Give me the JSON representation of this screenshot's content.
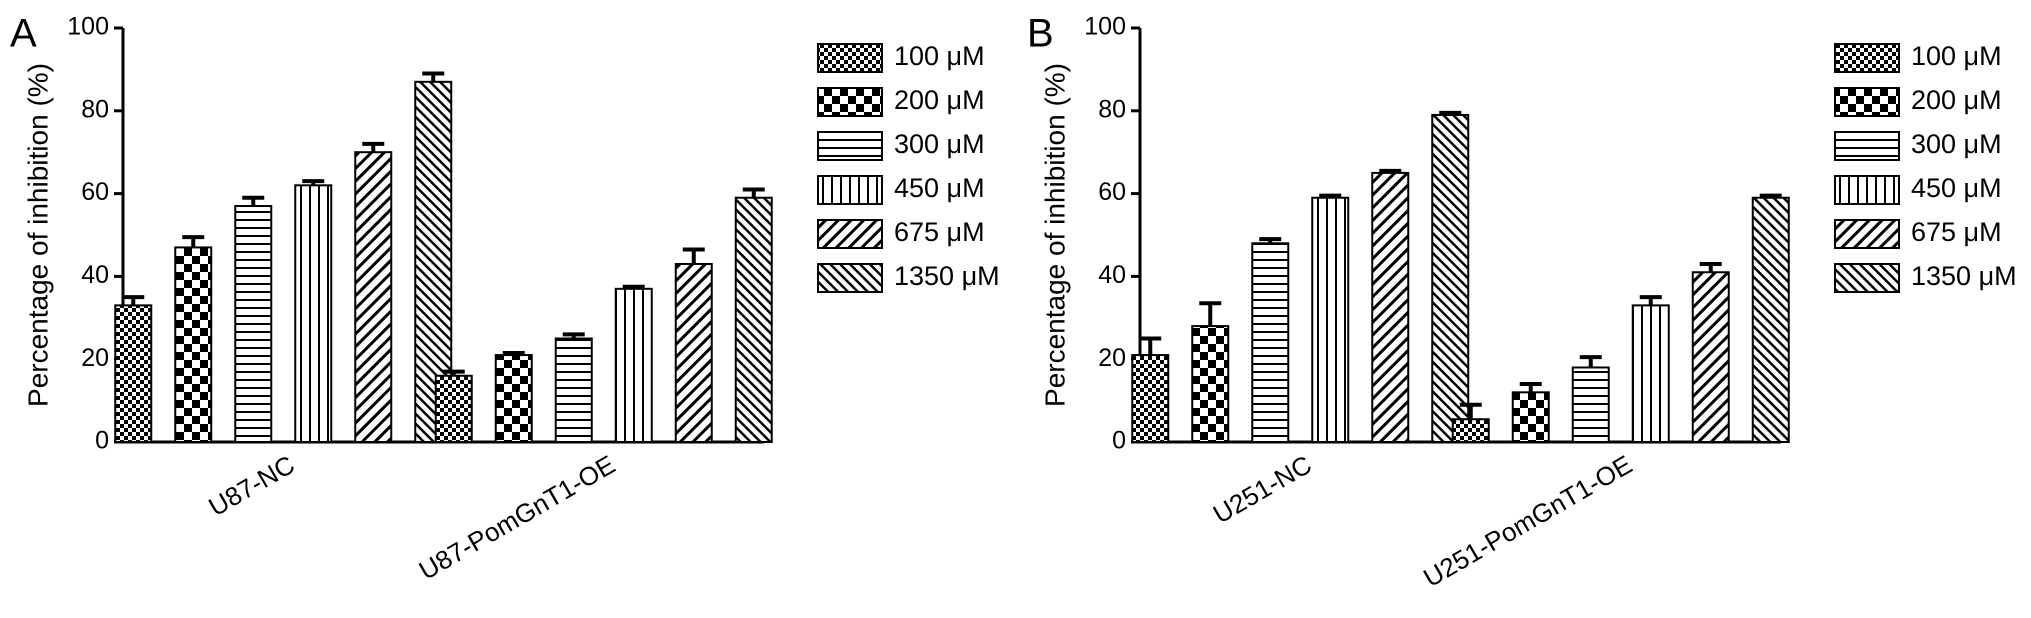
{
  "chart_data": [
    {
      "type": "bar",
      "panel_label": "A",
      "ylabel": "Percentage of inhibition (%)",
      "categories": [
        "U87-NC",
        "U87-PomGnT1-OE"
      ],
      "ylim": [
        0,
        100
      ],
      "yticks": [
        0,
        20,
        40,
        60,
        80,
        100
      ],
      "series": [
        {
          "name": "100 μM",
          "pattern": "fine-check",
          "values": [
            33,
            16
          ],
          "errors": [
            2,
            1
          ]
        },
        {
          "name": "200 μM",
          "pattern": "checker",
          "values": [
            47,
            21
          ],
          "errors": [
            2.5,
            0.5
          ]
        },
        {
          "name": "300 μM",
          "pattern": "horizontal",
          "values": [
            57,
            25
          ],
          "errors": [
            2,
            1
          ]
        },
        {
          "name": "450 μM",
          "pattern": "vertical",
          "values": [
            62,
            37
          ],
          "errors": [
            1,
            0.5
          ]
        },
        {
          "name": "675 μM",
          "pattern": "diagonal-up",
          "values": [
            70,
            43
          ],
          "errors": [
            2,
            3.5
          ]
        },
        {
          "name": "1350 μM",
          "pattern": "diagonal-down",
          "values": [
            87,
            59
          ],
          "errors": [
            2,
            2
          ]
        }
      ]
    },
    {
      "type": "bar",
      "panel_label": "B",
      "ylabel": "Percentage of inhibition (%)",
      "categories": [
        "U251-NC",
        "U251-PomGnT1-OE"
      ],
      "ylim": [
        0,
        100
      ],
      "yticks": [
        0,
        20,
        40,
        60,
        80,
        100
      ],
      "series": [
        {
          "name": "100 μM",
          "pattern": "fine-check",
          "values": [
            21,
            5.5
          ],
          "errors": [
            4,
            3.5
          ]
        },
        {
          "name": "200 μM",
          "pattern": "checker",
          "values": [
            28,
            12
          ],
          "errors": [
            5.5,
            2
          ]
        },
        {
          "name": "300 μM",
          "pattern": "horizontal",
          "values": [
            48,
            18
          ],
          "errors": [
            1,
            2.5
          ]
        },
        {
          "name": "450 μM",
          "pattern": "vertical",
          "values": [
            59,
            33
          ],
          "errors": [
            0.5,
            2
          ]
        },
        {
          "name": "675 μM",
          "pattern": "diagonal-up",
          "values": [
            65,
            41
          ],
          "errors": [
            0.5,
            2
          ]
        },
        {
          "name": "1350 μM",
          "pattern": "diagonal-down",
          "values": [
            79,
            59
          ],
          "errors": [
            0.5,
            0.5
          ]
        }
      ]
    }
  ]
}
